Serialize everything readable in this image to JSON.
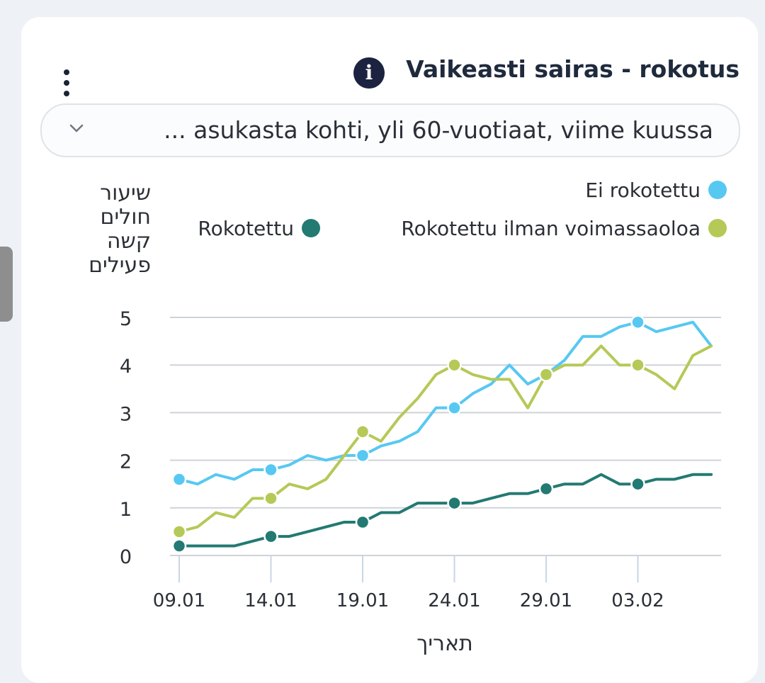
{
  "card": {
    "title": "Vaikeasti sairas - rokotus",
    "selector_value": "... asukasta kohti, yli 60-vuotiaat, viime kuussa"
  },
  "icons": {
    "menu": "kebab-menu-icon",
    "info": "info-icon",
    "info_glyph": "i",
    "dropdown": "chevron-down-icon"
  },
  "chart_data": {
    "type": "line",
    "ylabel": "שיעור חולים קשה פעילים",
    "ylabel_lines": [
      "שיעור",
      "חולים",
      "קשה",
      "פעילים"
    ],
    "xlabel": "תאריך",
    "ylim": [
      0,
      5
    ],
    "yticks": [
      0,
      1,
      2,
      3,
      4,
      5
    ],
    "xlim": [
      "09.01",
      "07.02"
    ],
    "xticks": [
      "09.01",
      "14.01",
      "19.01",
      "24.01",
      "29.01",
      "03.02"
    ],
    "grid": true,
    "legend_position": "top-right",
    "x": [
      "09.01",
      "10.01",
      "11.01",
      "12.01",
      "13.01",
      "14.01",
      "15.01",
      "16.01",
      "17.01",
      "18.01",
      "19.01",
      "20.01",
      "21.01",
      "22.01",
      "23.01",
      "24.01",
      "25.01",
      "26.01",
      "27.01",
      "28.01",
      "29.01",
      "30.01",
      "31.01",
      "01.02",
      "02.02",
      "03.02",
      "04.02",
      "05.02",
      "06.02",
      "07.02"
    ],
    "series": [
      {
        "name": "Ei rokotettu",
        "color": "#57c8f2",
        "values": [
          1.6,
          1.5,
          1.7,
          1.6,
          1.8,
          1.8,
          1.9,
          2.1,
          2.0,
          2.1,
          2.1,
          2.3,
          2.4,
          2.6,
          3.1,
          3.1,
          3.4,
          3.6,
          4.0,
          3.6,
          3.8,
          4.1,
          4.6,
          4.6,
          4.8,
          4.9,
          4.7,
          4.8,
          4.9,
          4.4
        ]
      },
      {
        "name": "Rokotettu ilman voimassaoloa",
        "color": "#b5c957",
        "values": [
          0.5,
          0.6,
          0.9,
          0.8,
          1.2,
          1.2,
          1.5,
          1.4,
          1.6,
          2.1,
          2.6,
          2.4,
          2.9,
          3.3,
          3.8,
          4.0,
          3.8,
          3.7,
          3.7,
          3.1,
          3.8,
          4.0,
          4.0,
          4.4,
          4.0,
          4.0,
          3.8,
          3.5,
          4.2,
          4.4
        ]
      },
      {
        "name": "Rokotettu",
        "color": "#227a72",
        "values": [
          0.2,
          0.2,
          0.2,
          0.2,
          0.3,
          0.4,
          0.4,
          0.5,
          0.6,
          0.7,
          0.7,
          0.9,
          0.9,
          1.1,
          1.1,
          1.1,
          1.1,
          1.2,
          1.3,
          1.3,
          1.4,
          1.5,
          1.5,
          1.7,
          1.5,
          1.5,
          1.6,
          1.6,
          1.7,
          1.7
        ]
      }
    ]
  }
}
